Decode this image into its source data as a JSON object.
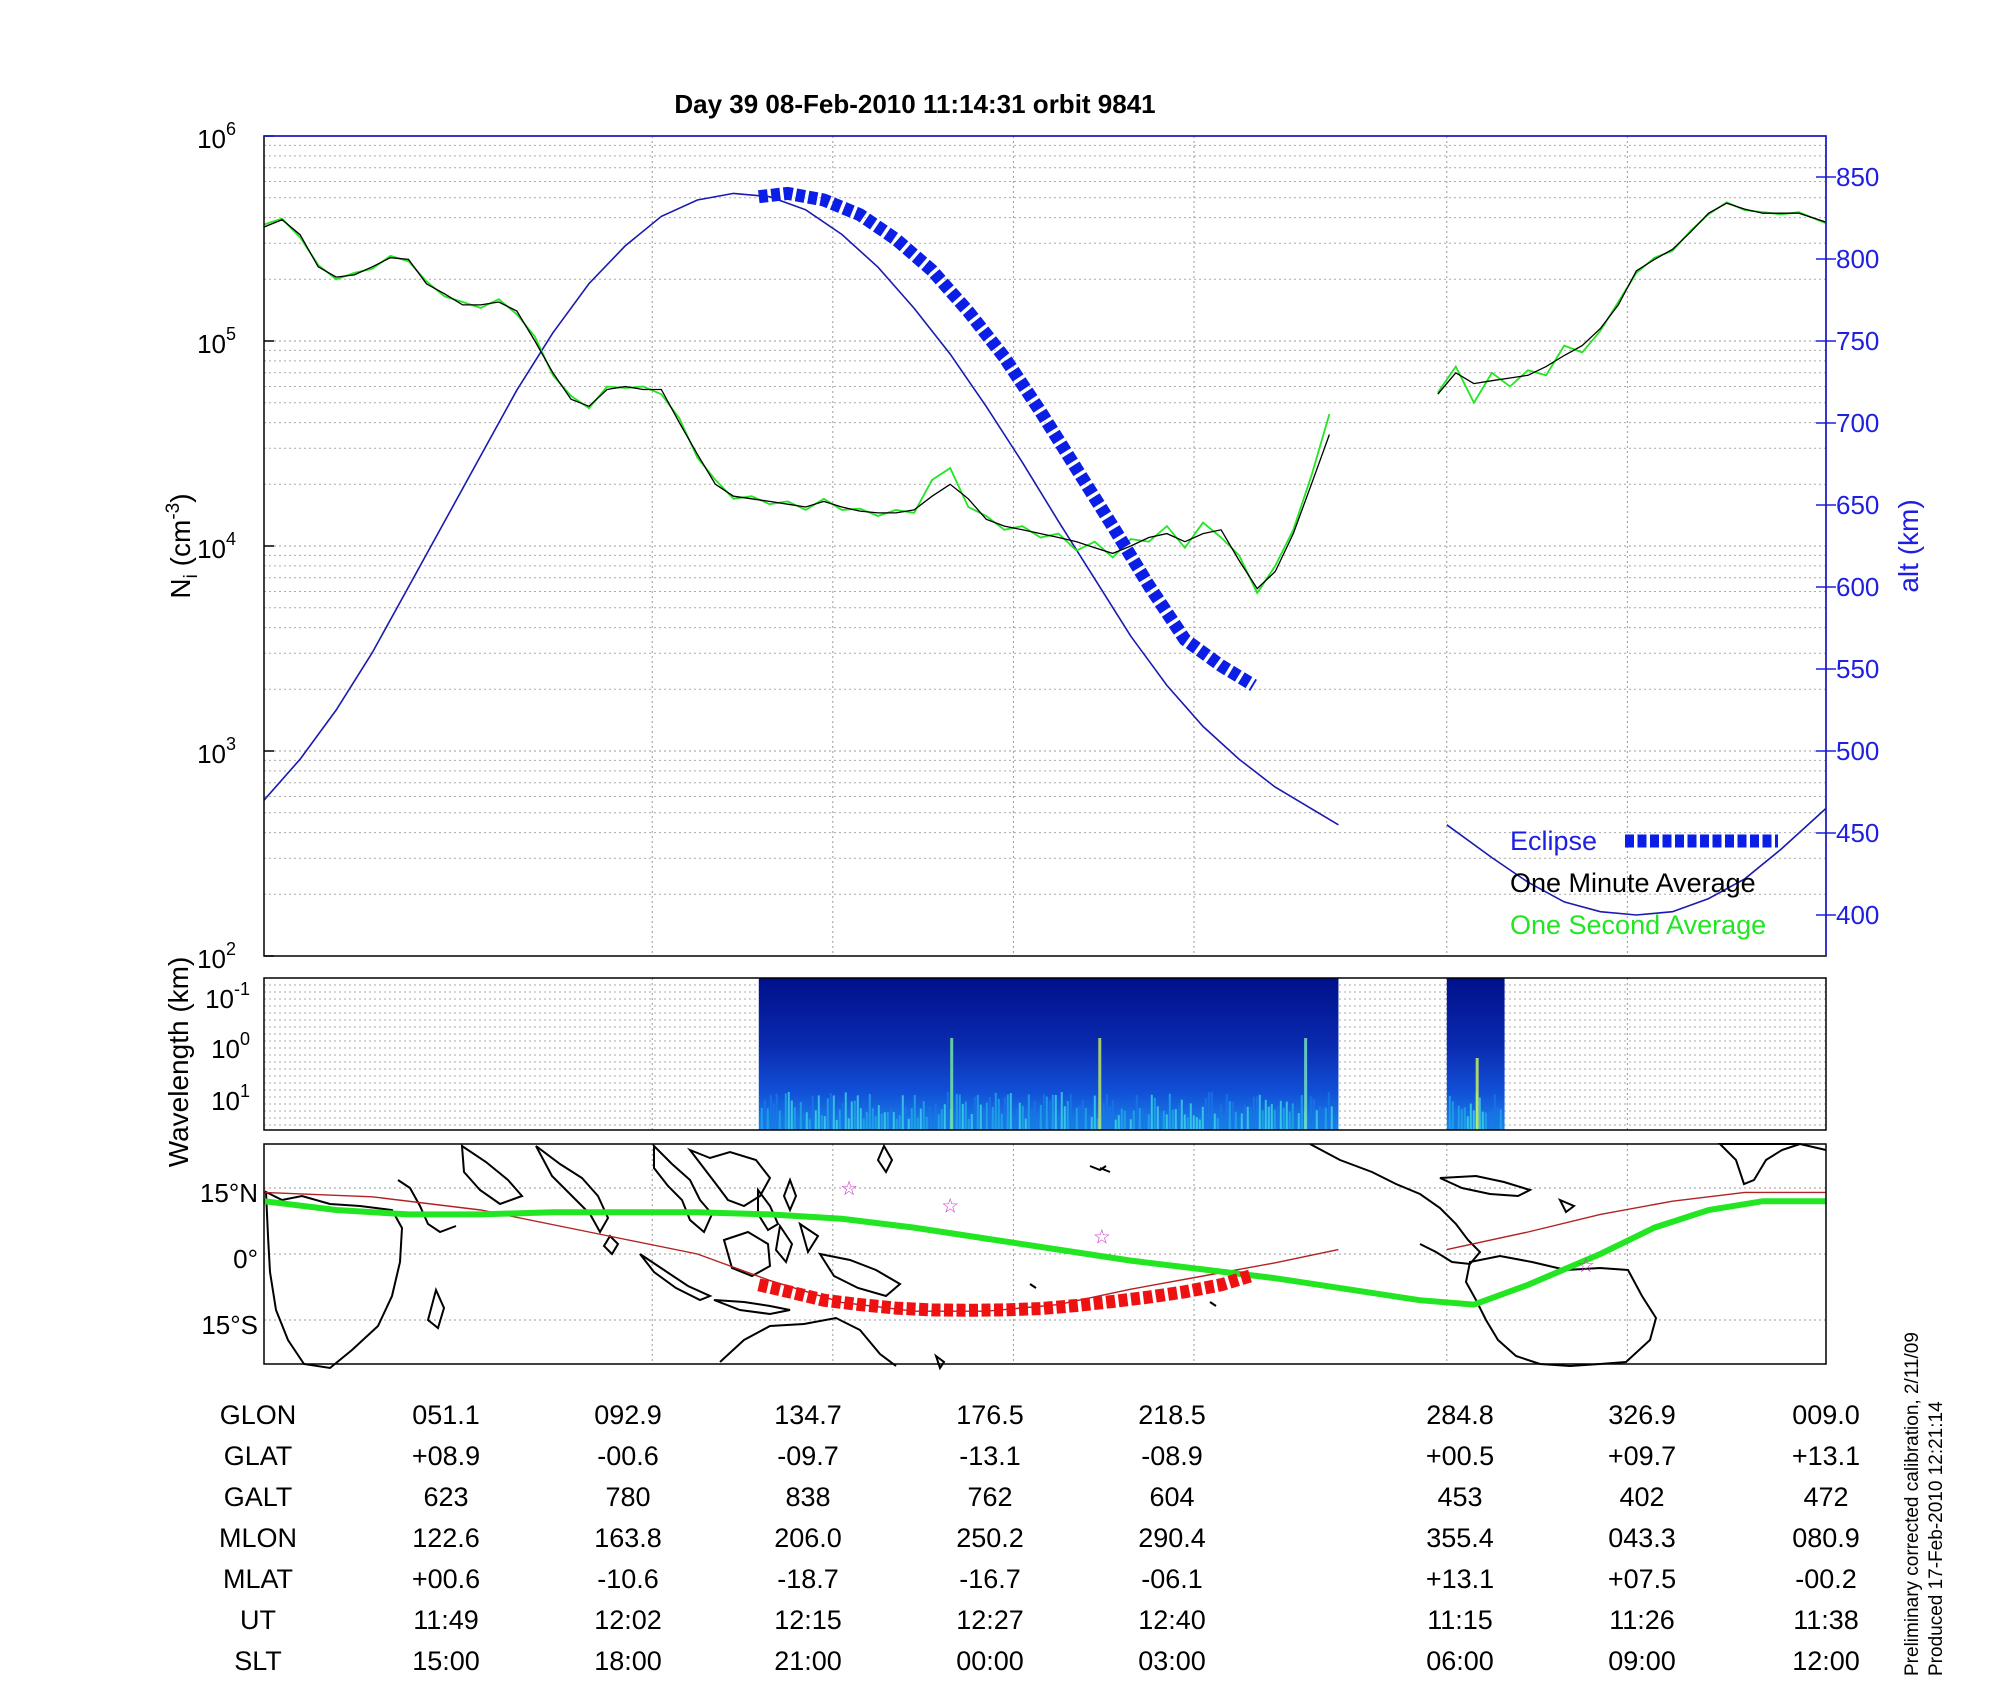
{
  "title": "Day 39  08-Feb-2010 11:14:31   orbit 9841",
  "colors": {
    "eclipse": "#0b1ee6",
    "minute_avg": "#000000",
    "second_avg": "#22e622",
    "altitude": "#1a1ab0",
    "track_eclipse": "#ee1111",
    "magnetic_track": "#b22222",
    "stars": "#cc33cc"
  },
  "chart_data": [
    {
      "id": "density",
      "type": "line",
      "ylabel": "N",
      "ylabel_sub": "i",
      "ylabel_unit": "(cm",
      "ylabel_unit_sup": "-3",
      "ylabel_unit_close": ")",
      "y_scale": "log",
      "ylim": [
        100,
        1000000
      ],
      "y_tick_labels": [
        {
          "base": "10",
          "exp": "2",
          "value": 100
        },
        {
          "base": "10",
          "exp": "3",
          "value": 1000
        },
        {
          "base": "10",
          "exp": "4",
          "value": 10000
        },
        {
          "base": "10",
          "exp": "5",
          "value": 100000
        },
        {
          "base": "10",
          "exp": "6",
          "value": 1000000
        }
      ],
      "y2label": "alt (km)",
      "y2lim": [
        375,
        875
      ],
      "y2_ticks": [
        400,
        450,
        500,
        550,
        600,
        650,
        700,
        750,
        800,
        850
      ],
      "x_unit": "UT minutes since 11:14:31 (0 = left edge, 43.25 = right edge)",
      "xlim": [
        0,
        43.25
      ],
      "grid": true,
      "legend_position": "bottom-right",
      "legend": [
        "Eclipse",
        "One Minute Average",
        "One Second Average"
      ],
      "series": [
        {
          "name": "One Minute Average",
          "segments": [
            {
              "x": [
                0,
                0.5,
                1.0,
                1.5,
                2.0,
                2.5,
                3.0,
                3.5,
                4.0,
                4.5,
                5.0,
                5.5,
                6.0,
                6.5,
                7.0,
                7.5,
                8.0,
                8.5,
                9.0,
                9.5,
                10.0,
                10.5,
                11.0,
                11.5,
                12.0,
                12.5,
                13.0,
                13.5,
                14.0,
                14.5,
                15.0,
                15.5,
                16.0,
                16.5,
                17.0,
                17.5,
                18.0,
                18.5,
                19.0,
                19.5,
                20.0,
                20.5,
                21.0,
                21.5,
                22.0,
                22.5,
                23.0,
                23.5,
                24.0,
                24.5,
                25.0,
                25.5,
                26.0,
                26.5,
                27.0,
                27.5,
                28.0,
                28.5,
                29.0,
                29.5
              ],
              "y": [
                360000,
                390000,
                330000,
                230000,
                205000,
                210000,
                230000,
                255000,
                250000,
                190000,
                170000,
                150000,
                150000,
                155000,
                140000,
                100000,
                70000,
                52000,
                48000,
                58000,
                60000,
                58000,
                58000,
                40000,
                28000,
                20000,
                17500,
                17000,
                16500,
                16000,
                15500,
                16500,
                15500,
                14800,
                14500,
                14500,
                15000,
                17500,
                20000,
                17000,
                13500,
                12500,
                12000,
                11500,
                11000,
                10500,
                9800,
                9200,
                10000,
                11000,
                11500,
                10500,
                11500,
                12000,
                8500,
                6200,
                7500,
                11500,
                20000,
                35000
              ]
            },
            {
              "x": [
                32.5,
                33.0,
                33.5,
                34.0,
                34.5,
                35.0,
                35.5,
                36.0,
                36.5,
                37.0,
                37.5,
                38.0,
                38.5,
                39.0,
                39.5,
                40.0,
                40.5,
                41.0,
                41.5,
                42.0,
                42.5,
                43.25
              ],
              "y": [
                55000,
                70000,
                62000,
                64000,
                66000,
                68000,
                75000,
                85000,
                95000,
                115000,
                150000,
                220000,
                250000,
                280000,
                340000,
                420000,
                470000,
                440000,
                420000,
                420000,
                420000,
                380000
              ]
            }
          ]
        },
        {
          "name": "One Second Average",
          "segments": [
            {
              "x": [
                0,
                0.5,
                1.0,
                1.5,
                2.0,
                2.5,
                3.0,
                3.5,
                4.0,
                4.5,
                5.0,
                5.5,
                6.0,
                6.5,
                7.0,
                7.5,
                8.0,
                8.5,
                9.0,
                9.5,
                10.0,
                10.5,
                11.0,
                11.5,
                12.0,
                12.5,
                13.0,
                13.5,
                14.0,
                14.5,
                15.0,
                15.5,
                16.0,
                16.5,
                17.0,
                17.5,
                18.0,
                18.5,
                19.0,
                19.5,
                20.0,
                20.5,
                21.0,
                21.5,
                22.0,
                22.5,
                23.0,
                23.5,
                24.0,
                24.5,
                25.0,
                25.5,
                26.0,
                26.5,
                27.0,
                27.5,
                28.0,
                28.5,
                29.0,
                29.5
              ],
              "y": [
                370000,
                395000,
                320000,
                235000,
                200000,
                215000,
                225000,
                260000,
                245000,
                195000,
                165000,
                155000,
                145000,
                160000,
                135000,
                105000,
                68000,
                54000,
                47000,
                60000,
                59000,
                60000,
                55000,
                42000,
                27000,
                21000,
                17000,
                17500,
                16000,
                16500,
                15000,
                17000,
                15000,
                15200,
                14000,
                15000,
                14500,
                21000,
                24000,
                15500,
                14000,
                12000,
                12500,
                11000,
                11500,
                9500,
                10500,
                8800,
                10800,
                10500,
                12500,
                9800,
                13000,
                11000,
                9000,
                5900,
                8000,
                12000,
                22000,
                44000
              ]
            },
            {
              "x": [
                32.5,
                33.0,
                33.5,
                34.0,
                34.5,
                35.0,
                35.5,
                36.0,
                36.5,
                37.0,
                37.5,
                38.0,
                38.5,
                39.0,
                39.5,
                40.0,
                40.5,
                41.0,
                41.5,
                42.0,
                42.5,
                43.25
              ],
              "y": [
                56000,
                75000,
                50000,
                70000,
                60000,
                72000,
                68000,
                95000,
                88000,
                112000,
                155000,
                215000,
                255000,
                275000,
                345000,
                415000,
                475000,
                435000,
                425000,
                415000,
                425000,
                375000
              ]
            }
          ]
        },
        {
          "name": "alt (km)",
          "axis": "right",
          "segments": [
            {
              "x": [
                0,
                1,
                2,
                3,
                4,
                5,
                6,
                7,
                8,
                9,
                10,
                11,
                12,
                13,
                14,
                15,
                16,
                17,
                18,
                19,
                20,
                21,
                22,
                23,
                24,
                25,
                26,
                27,
                28,
                29.75
              ],
              "y": [
                470,
                495,
                525,
                560,
                600,
                640,
                680,
                720,
                755,
                785,
                808,
                826,
                836,
                840,
                838,
                830,
                815,
                795,
                770,
                742,
                710,
                676,
                640,
                605,
                570,
                540,
                515,
                495,
                478,
                455
              ]
            },
            {
              "x": [
                32.75,
                34,
                35,
                36,
                37,
                38,
                39,
                40,
                41,
                42,
                43.25
              ],
              "y": [
                455,
                435,
                420,
                408,
                402,
                400,
                402,
                410,
                422,
                440,
                465
              ]
            }
          ]
        },
        {
          "name": "Eclipse",
          "axis": "right",
          "x": [
            13.7,
            14.5,
            15.5,
            16.5,
            17.5,
            18.5,
            19.5,
            20.5,
            21.5,
            22.5,
            23.5,
            24.5,
            25.5,
            26.5,
            27.4
          ],
          "y": [
            838,
            840,
            836,
            827,
            812,
            793,
            768,
            740,
            707,
            672,
            637,
            601,
            568,
            552,
            540
          ]
        }
      ]
    },
    {
      "id": "spectrogram",
      "type": "heatmap",
      "ylabel": "Wavelength (km)",
      "y_scale": "log",
      "y_tick_labels": [
        {
          "base": "10",
          "exp": "-1"
        },
        {
          "base": "10",
          "exp": "0"
        },
        {
          "base": "10",
          "exp": "1"
        }
      ],
      "data_ranges_x": [
        [
          13.7,
          29.75
        ],
        [
          32.75,
          34.35
        ]
      ]
    },
    {
      "id": "map",
      "type": "line",
      "y_tick_labels": [
        "15°N",
        "0°",
        "15°S"
      ],
      "series": [
        {
          "name": "geographic track",
          "x": [
            0,
            2,
            4,
            6,
            8,
            10,
            12,
            14,
            16,
            18,
            20,
            22,
            24,
            26,
            28,
            30,
            32,
            33.5,
            35,
            37,
            38.5,
            40,
            41.5,
            43.25
          ],
          "y": [
            12,
            10,
            9,
            9,
            9.5,
            9.5,
            9.5,
            9,
            8,
            6,
            3.5,
            1,
            -1.5,
            -3.5,
            -5.5,
            -8,
            -10.5,
            -11.5,
            -7,
            0,
            6,
            10,
            12,
            12
          ]
        },
        {
          "name": "eclipse track",
          "x": [
            13.7,
            14.5,
            15.5,
            16.5,
            17.5,
            18.5,
            19.5,
            20.5,
            21.5,
            22.5,
            23.5,
            24.5,
            25.5,
            26.5,
            27.3
          ],
          "y": [
            -7,
            -8.5,
            -10.5,
            -11.5,
            -12.3,
            -12.7,
            -12.8,
            -12.7,
            -12.4,
            -11.7,
            -10.8,
            -9.8,
            -8.6,
            -7,
            -5
          ]
        },
        {
          "name": "magnetic track",
          "segments": [
            {
              "x": [
                0,
                3,
                6,
                9,
                12,
                14,
                16,
                18,
                20,
                22,
                24,
                26,
                28,
                29.75
              ],
              "y": [
                14,
                13,
                10,
                5,
                0,
                -6,
                -11,
                -13,
                -13,
                -11.5,
                -8,
                -5,
                -2,
                1
              ]
            },
            {
              "x": [
                32.75,
                35,
                37,
                39,
                41,
                43.25
              ],
              "y": [
                1,
                5,
                9,
                12,
                14,
                14
              ]
            }
          ]
        }
      ],
      "stars": [
        {
          "x": 16.2,
          "y": 15
        },
        {
          "x": 19.0,
          "y": 11
        },
        {
          "x": 23.2,
          "y": 4
        },
        {
          "x": 36.6,
          "y": -2.5
        }
      ]
    }
  ],
  "table": {
    "rows": [
      {
        "label": "GLON",
        "values": [
          "051.1",
          "092.9",
          "134.7",
          "176.5",
          "218.5",
          "284.8",
          "326.9",
          "009.0"
        ]
      },
      {
        "label": "GLAT",
        "values": [
          "+08.9",
          "-00.6",
          "-09.7",
          "-13.1",
          "-08.9",
          "+00.5",
          "+09.7",
          "+13.1"
        ]
      },
      {
        "label": "GALT",
        "values": [
          "623",
          "780",
          "838",
          "762",
          "604",
          "453",
          "402",
          "472"
        ]
      },
      {
        "label": "MLON",
        "values": [
          "122.6",
          "163.8",
          "206.0",
          "250.2",
          "290.4",
          "355.4",
          "043.3",
          "080.9"
        ]
      },
      {
        "label": "MLAT",
        "values": [
          "+00.6",
          "-10.6",
          "-18.7",
          "-16.7",
          "-06.1",
          "+13.1",
          "+07.5",
          "-00.2"
        ]
      },
      {
        "label": "UT",
        "values": [
          "11:49",
          "12:02",
          "12:15",
          "12:27",
          "12:40",
          "11:15",
          "11:26",
          "11:38"
        ]
      },
      {
        "label": "SLT",
        "values": [
          "15:00",
          "18:00",
          "21:00",
          "00:00",
          "03:00",
          "06:00",
          "09:00",
          "12:00"
        ]
      }
    ]
  },
  "footnote": {
    "line1": "Preliminary corrected calibration, 2/11/09",
    "line2": "Produced 17-Feb-2010 12:21:14"
  }
}
